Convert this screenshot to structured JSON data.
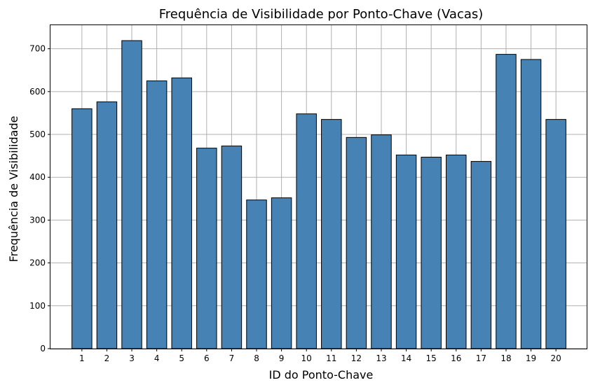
{
  "chart_data": {
    "type": "bar",
    "title": "Frequência de Visibilidade por Ponto-Chave (Vacas)",
    "xlabel": "ID do Ponto-Chave",
    "ylabel": "Frequência de Visibilidade",
    "categories": [
      "1",
      "2",
      "3",
      "4",
      "5",
      "6",
      "7",
      "8",
      "9",
      "10",
      "11",
      "12",
      "13",
      "14",
      "15",
      "16",
      "17",
      "18",
      "19",
      "20"
    ],
    "values": [
      560,
      576,
      719,
      625,
      632,
      468,
      473,
      347,
      352,
      548,
      535,
      493,
      499,
      452,
      447,
      452,
      437,
      687,
      675,
      535
    ],
    "ylim": [
      0,
      755
    ],
    "yticks": [
      0,
      100,
      200,
      300,
      400,
      500,
      600,
      700
    ],
    "grid": true,
    "legend": "none",
    "colors": {
      "bar_fill": "#4682b4",
      "bar_edge": "#000000",
      "grid": "#b0b0b0"
    }
  }
}
